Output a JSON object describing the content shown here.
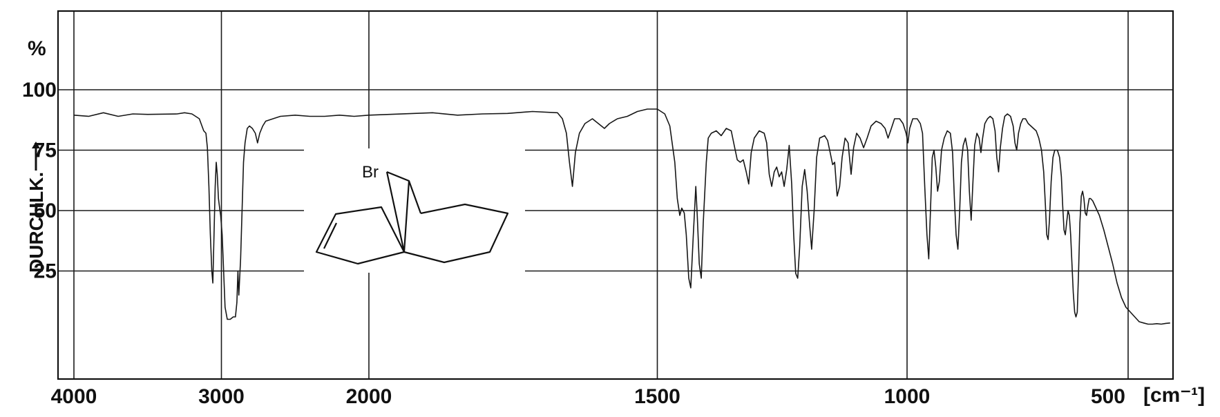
{
  "chart_data": {
    "type": "line",
    "title": "",
    "xlabel": "",
    "x_unit_label": "[cm⁻¹]",
    "ylabel": "DURCHLK.",
    "y_unit_label": "%",
    "x_ticks": [
      {
        "value": 4000,
        "label": "4000"
      },
      {
        "value": 3000,
        "label": "3000"
      },
      {
        "value": 2000,
        "label": "2000"
      },
      {
        "value": 1500,
        "label": "1500"
      },
      {
        "value": 1000,
        "label": "1000"
      },
      {
        "value": 500,
        "label": "500"
      }
    ],
    "y_ticks": [
      {
        "value": 100,
        "label": "100"
      },
      {
        "value": 75,
        "label": "75"
      },
      {
        "value": 50,
        "label": "50"
      },
      {
        "value": 25,
        "label": "25"
      }
    ],
    "ylim": [
      0,
      100
    ],
    "grid": true,
    "axis_note": "wavenumber axis in cm-1; scale changes at 2000 cm-1 (4000-2000 and 2000-400 segments)",
    "structure_label": "Br",
    "series": [
      {
        "points": [
          [
            4000,
            89.5
          ],
          [
            3900,
            89
          ],
          [
            3800,
            90.5
          ],
          [
            3700,
            89
          ],
          [
            3600,
            90
          ],
          [
            3500,
            89.8
          ],
          [
            3300,
            90
          ],
          [
            3250,
            90.5
          ],
          [
            3200,
            90
          ],
          [
            3150,
            88
          ],
          [
            3120,
            83
          ],
          [
            3105,
            82
          ],
          [
            3095,
            76
          ],
          [
            3085,
            60
          ],
          [
            3075,
            40
          ],
          [
            3065,
            25
          ],
          [
            3058,
            20
          ],
          [
            3050,
            40
          ],
          [
            3042,
            60
          ],
          [
            3035,
            70
          ],
          [
            3028,
            65
          ],
          [
            3020,
            55
          ],
          [
            3010,
            50
          ],
          [
            3005,
            48
          ],
          [
            2995,
            40
          ],
          [
            2985,
            25
          ],
          [
            2975,
            10
          ],
          [
            2960,
            5
          ],
          [
            2940,
            5
          ],
          [
            2920,
            6
          ],
          [
            2905,
            6
          ],
          [
            2895,
            12
          ],
          [
            2888,
            25
          ],
          [
            2882,
            15
          ],
          [
            2870,
            30
          ],
          [
            2860,
            50
          ],
          [
            2850,
            70
          ],
          [
            2840,
            78
          ],
          [
            2825,
            84
          ],
          [
            2810,
            85
          ],
          [
            2790,
            84
          ],
          [
            2770,
            82
          ],
          [
            2755,
            78
          ],
          [
            2740,
            82
          ],
          [
            2720,
            85
          ],
          [
            2700,
            87
          ],
          [
            2650,
            88
          ],
          [
            2600,
            89
          ],
          [
            2500,
            89.5
          ],
          [
            2400,
            89
          ],
          [
            2300,
            89
          ],
          [
            2200,
            89.5
          ],
          [
            2100,
            89
          ],
          [
            2000,
            89.5
          ],
          [
            1950,
            90.5
          ],
          [
            1900,
            89.5
          ],
          [
            1850,
            90
          ],
          [
            1800,
            90.2
          ],
          [
            1750,
            91
          ],
          [
            1700,
            90.5
          ],
          [
            1690,
            88
          ],
          [
            1682,
            82
          ],
          [
            1676,
            70
          ],
          [
            1670,
            60
          ],
          [
            1664,
            74
          ],
          [
            1656,
            82
          ],
          [
            1645,
            86
          ],
          [
            1630,
            88
          ],
          [
            1618,
            86
          ],
          [
            1606,
            84
          ],
          [
            1596,
            86
          ],
          [
            1580,
            88
          ],
          [
            1560,
            89
          ],
          [
            1540,
            91
          ],
          [
            1520,
            92
          ],
          [
            1500,
            92
          ],
          [
            1485,
            90
          ],
          [
            1475,
            85
          ],
          [
            1465,
            70
          ],
          [
            1460,
            55
          ],
          [
            1455,
            48
          ],
          [
            1451,
            51
          ],
          [
            1446,
            49
          ],
          [
            1442,
            40
          ],
          [
            1437,
            22
          ],
          [
            1433,
            18
          ],
          [
            1428,
            40
          ],
          [
            1423,
            60
          ],
          [
            1420,
            48
          ],
          [
            1416,
            28
          ],
          [
            1412,
            22
          ],
          [
            1408,
            45
          ],
          [
            1402,
            70
          ],
          [
            1398,
            80
          ],
          [
            1392,
            82
          ],
          [
            1382,
            83
          ],
          [
            1372,
            81
          ],
          [
            1362,
            84
          ],
          [
            1352,
            83
          ],
          [
            1346,
            77
          ],
          [
            1340,
            71
          ],
          [
            1334,
            70
          ],
          [
            1328,
            71
          ],
          [
            1322,
            66
          ],
          [
            1317,
            61
          ],
          [
            1312,
            74
          ],
          [
            1306,
            80
          ],
          [
            1296,
            83
          ],
          [
            1286,
            82
          ],
          [
            1281,
            78
          ],
          [
            1276,
            65
          ],
          [
            1271,
            60
          ],
          [
            1266,
            66
          ],
          [
            1261,
            68
          ],
          [
            1256,
            64
          ],
          [
            1251,
            66
          ],
          [
            1246,
            60
          ],
          [
            1241,
            67
          ],
          [
            1236,
            77
          ],
          [
            1231,
            61
          ],
          [
            1227,
            40
          ],
          [
            1223,
            24
          ],
          [
            1219,
            22
          ],
          [
            1215,
            35
          ],
          [
            1210,
            60
          ],
          [
            1205,
            67
          ],
          [
            1200,
            58
          ],
          [
            1195,
            44
          ],
          [
            1191,
            34
          ],
          [
            1186,
            50
          ],
          [
            1181,
            72
          ],
          [
            1175,
            80
          ],
          [
            1165,
            81
          ],
          [
            1159,
            79
          ],
          [
            1154,
            74
          ],
          [
            1149,
            69
          ],
          [
            1145,
            70
          ],
          [
            1140,
            56
          ],
          [
            1135,
            60
          ],
          [
            1130,
            72
          ],
          [
            1124,
            80
          ],
          [
            1118,
            78
          ],
          [
            1112,
            65
          ],
          [
            1107,
            76
          ],
          [
            1101,
            82
          ],
          [
            1094,
            80
          ],
          [
            1087,
            76
          ],
          [
            1080,
            80
          ],
          [
            1072,
            85
          ],
          [
            1062,
            87
          ],
          [
            1052,
            86
          ],
          [
            1044,
            84
          ],
          [
            1038,
            80
          ],
          [
            1033,
            83
          ],
          [
            1025,
            88
          ],
          [
            1015,
            88
          ],
          [
            1008,
            86
          ],
          [
            1002,
            82
          ],
          [
            998,
            78
          ],
          [
            994,
            84
          ],
          [
            987,
            88
          ],
          [
            977,
            88
          ],
          [
            970,
            86
          ],
          [
            965,
            82
          ],
          [
            960,
            60
          ],
          [
            955,
            40
          ],
          [
            951,
            30
          ],
          [
            947,
            50
          ],
          [
            943,
            72
          ],
          [
            939,
            75
          ],
          [
            935,
            68
          ],
          [
            931,
            58
          ],
          [
            927,
            62
          ],
          [
            922,
            75
          ],
          [
            916,
            80
          ],
          [
            909,
            83
          ],
          [
            902,
            82
          ],
          [
            897,
            74
          ],
          [
            893,
            55
          ],
          [
            889,
            40
          ],
          [
            885,
            34
          ],
          [
            881,
            50
          ],
          [
            877,
            70
          ],
          [
            873,
            77
          ],
          [
            868,
            80
          ],
          [
            863,
            75
          ],
          [
            859,
            58
          ],
          [
            855,
            46
          ],
          [
            851,
            62
          ],
          [
            847,
            77
          ],
          [
            842,
            82
          ],
          [
            837,
            80
          ],
          [
            833,
            74
          ],
          [
            829,
            80
          ],
          [
            824,
            86
          ],
          [
            818,
            88
          ],
          [
            812,
            89
          ],
          [
            806,
            88
          ],
          [
            801,
            83
          ],
          [
            797,
            72
          ],
          [
            793,
            66
          ],
          [
            789,
            76
          ],
          [
            784,
            84
          ],
          [
            779,
            89
          ],
          [
            773,
            90
          ],
          [
            766,
            89
          ],
          [
            760,
            85
          ],
          [
            756,
            78
          ],
          [
            752,
            75
          ],
          [
            748,
            82
          ],
          [
            743,
            86
          ],
          [
            738,
            88
          ],
          [
            732,
            88
          ],
          [
            726,
            86
          ],
          [
            720,
            85
          ],
          [
            714,
            84
          ],
          [
            708,
            83
          ],
          [
            702,
            80
          ],
          [
            696,
            75
          ],
          [
            691,
            66
          ],
          [
            687,
            52
          ],
          [
            684,
            40
          ],
          [
            681,
            38
          ],
          [
            678,
            46
          ],
          [
            674,
            62
          ],
          [
            670,
            72
          ],
          [
            666,
            75
          ],
          [
            660,
            75
          ],
          [
            655,
            72
          ],
          [
            651,
            64
          ],
          [
            648,
            52
          ],
          [
            645,
            42
          ],
          [
            642,
            40
          ],
          [
            639,
            45
          ],
          [
            636,
            50
          ],
          [
            633,
            48
          ],
          [
            630,
            40
          ],
          [
            627,
            28
          ],
          [
            624,
            16
          ],
          [
            621,
            8
          ],
          [
            618,
            6
          ],
          [
            615,
            8
          ],
          [
            612,
            25
          ],
          [
            609,
            45
          ],
          [
            606,
            56
          ],
          [
            603,
            58
          ],
          [
            600,
            55
          ],
          [
            597,
            49
          ],
          [
            594,
            48
          ],
          [
            591,
            52
          ],
          [
            588,
            55
          ],
          [
            585,
            55
          ],
          [
            580,
            54
          ],
          [
            575,
            52
          ],
          [
            565,
            48
          ],
          [
            555,
            42
          ],
          [
            545,
            35
          ],
          [
            535,
            28
          ],
          [
            525,
            20
          ],
          [
            515,
            14
          ],
          [
            505,
            10
          ],
          [
            495,
            8
          ],
          [
            485,
            6
          ],
          [
            475,
            4
          ],
          [
            465,
            3.5
          ],
          [
            455,
            3
          ],
          [
            445,
            3
          ],
          [
            435,
            3.2
          ],
          [
            425,
            3
          ],
          [
            415,
            3.3
          ],
          [
            405,
            3.5
          ]
        ]
      }
    ]
  }
}
